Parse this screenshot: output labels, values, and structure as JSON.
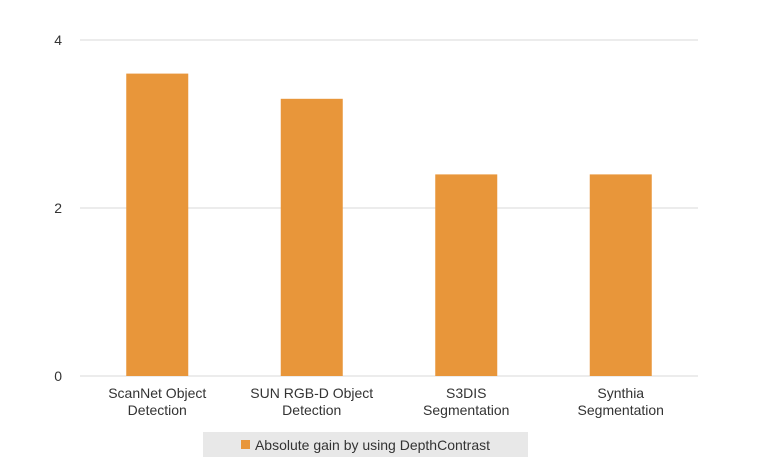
{
  "chart_data": {
    "type": "bar",
    "categories": [
      [
        "ScanNet Object",
        "Detection"
      ],
      [
        "SUN RGB-D Object",
        "Detection"
      ],
      [
        "S3DIS",
        "Segmentation"
      ],
      [
        "Synthia",
        "Segmentation"
      ]
    ],
    "series": [
      {
        "name": "Absolute gain by using DepthContrast",
        "values": [
          3.6,
          3.3,
          2.4,
          2.4
        ]
      }
    ],
    "yticks": [
      0,
      2,
      4
    ],
    "ylim": [
      0,
      4
    ],
    "grid": true,
    "legend_position": "bottom",
    "colors": {
      "bar": "#e8963a",
      "grid": "#d9d9d9",
      "text": "#333333",
      "legend_bg": "#e8e8e8"
    }
  }
}
